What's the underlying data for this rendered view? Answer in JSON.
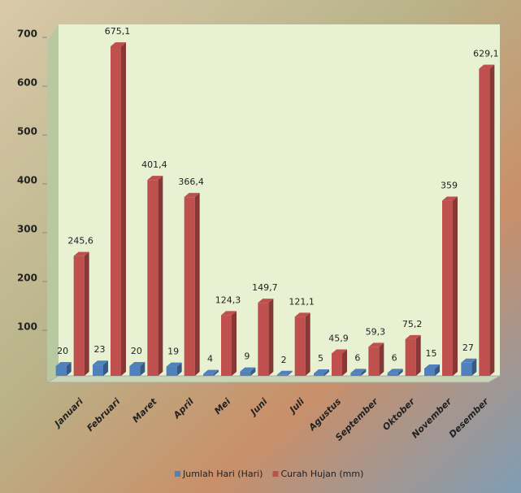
{
  "chart_data": {
    "type": "bar3d",
    "categories": [
      "Januari",
      "Februari",
      "Maret",
      "April",
      "Mei",
      "Juni",
      "Juli",
      "Agustus",
      "September",
      "Oktober",
      "November",
      "Desember"
    ],
    "series": [
      {
        "name": "Jumlah Hari (Hari)",
        "color": "#4f81bd",
        "values": [
          20,
          23,
          20,
          19,
          4,
          9,
          2,
          5,
          6,
          6,
          15,
          27
        ]
      },
      {
        "name": "Curah Hujan (mm)",
        "color": "#c0504d",
        "values": [
          245.6,
          675.1,
          401.4,
          366.4,
          124.3,
          149.7,
          121.1,
          45.9,
          59.3,
          75.2,
          359,
          629.1
        ],
        "value_labels": [
          "245,6",
          "675,1",
          "401,4",
          "366,4",
          "124,3",
          "149,7",
          "121,1",
          "45,9",
          "59,3",
          "75,2",
          "359",
          "629,1"
        ]
      }
    ],
    "ylim": [
      0,
      700
    ],
    "yticks": [
      100,
      200,
      300,
      400,
      500,
      600,
      700
    ],
    "legend": "bottom"
  }
}
